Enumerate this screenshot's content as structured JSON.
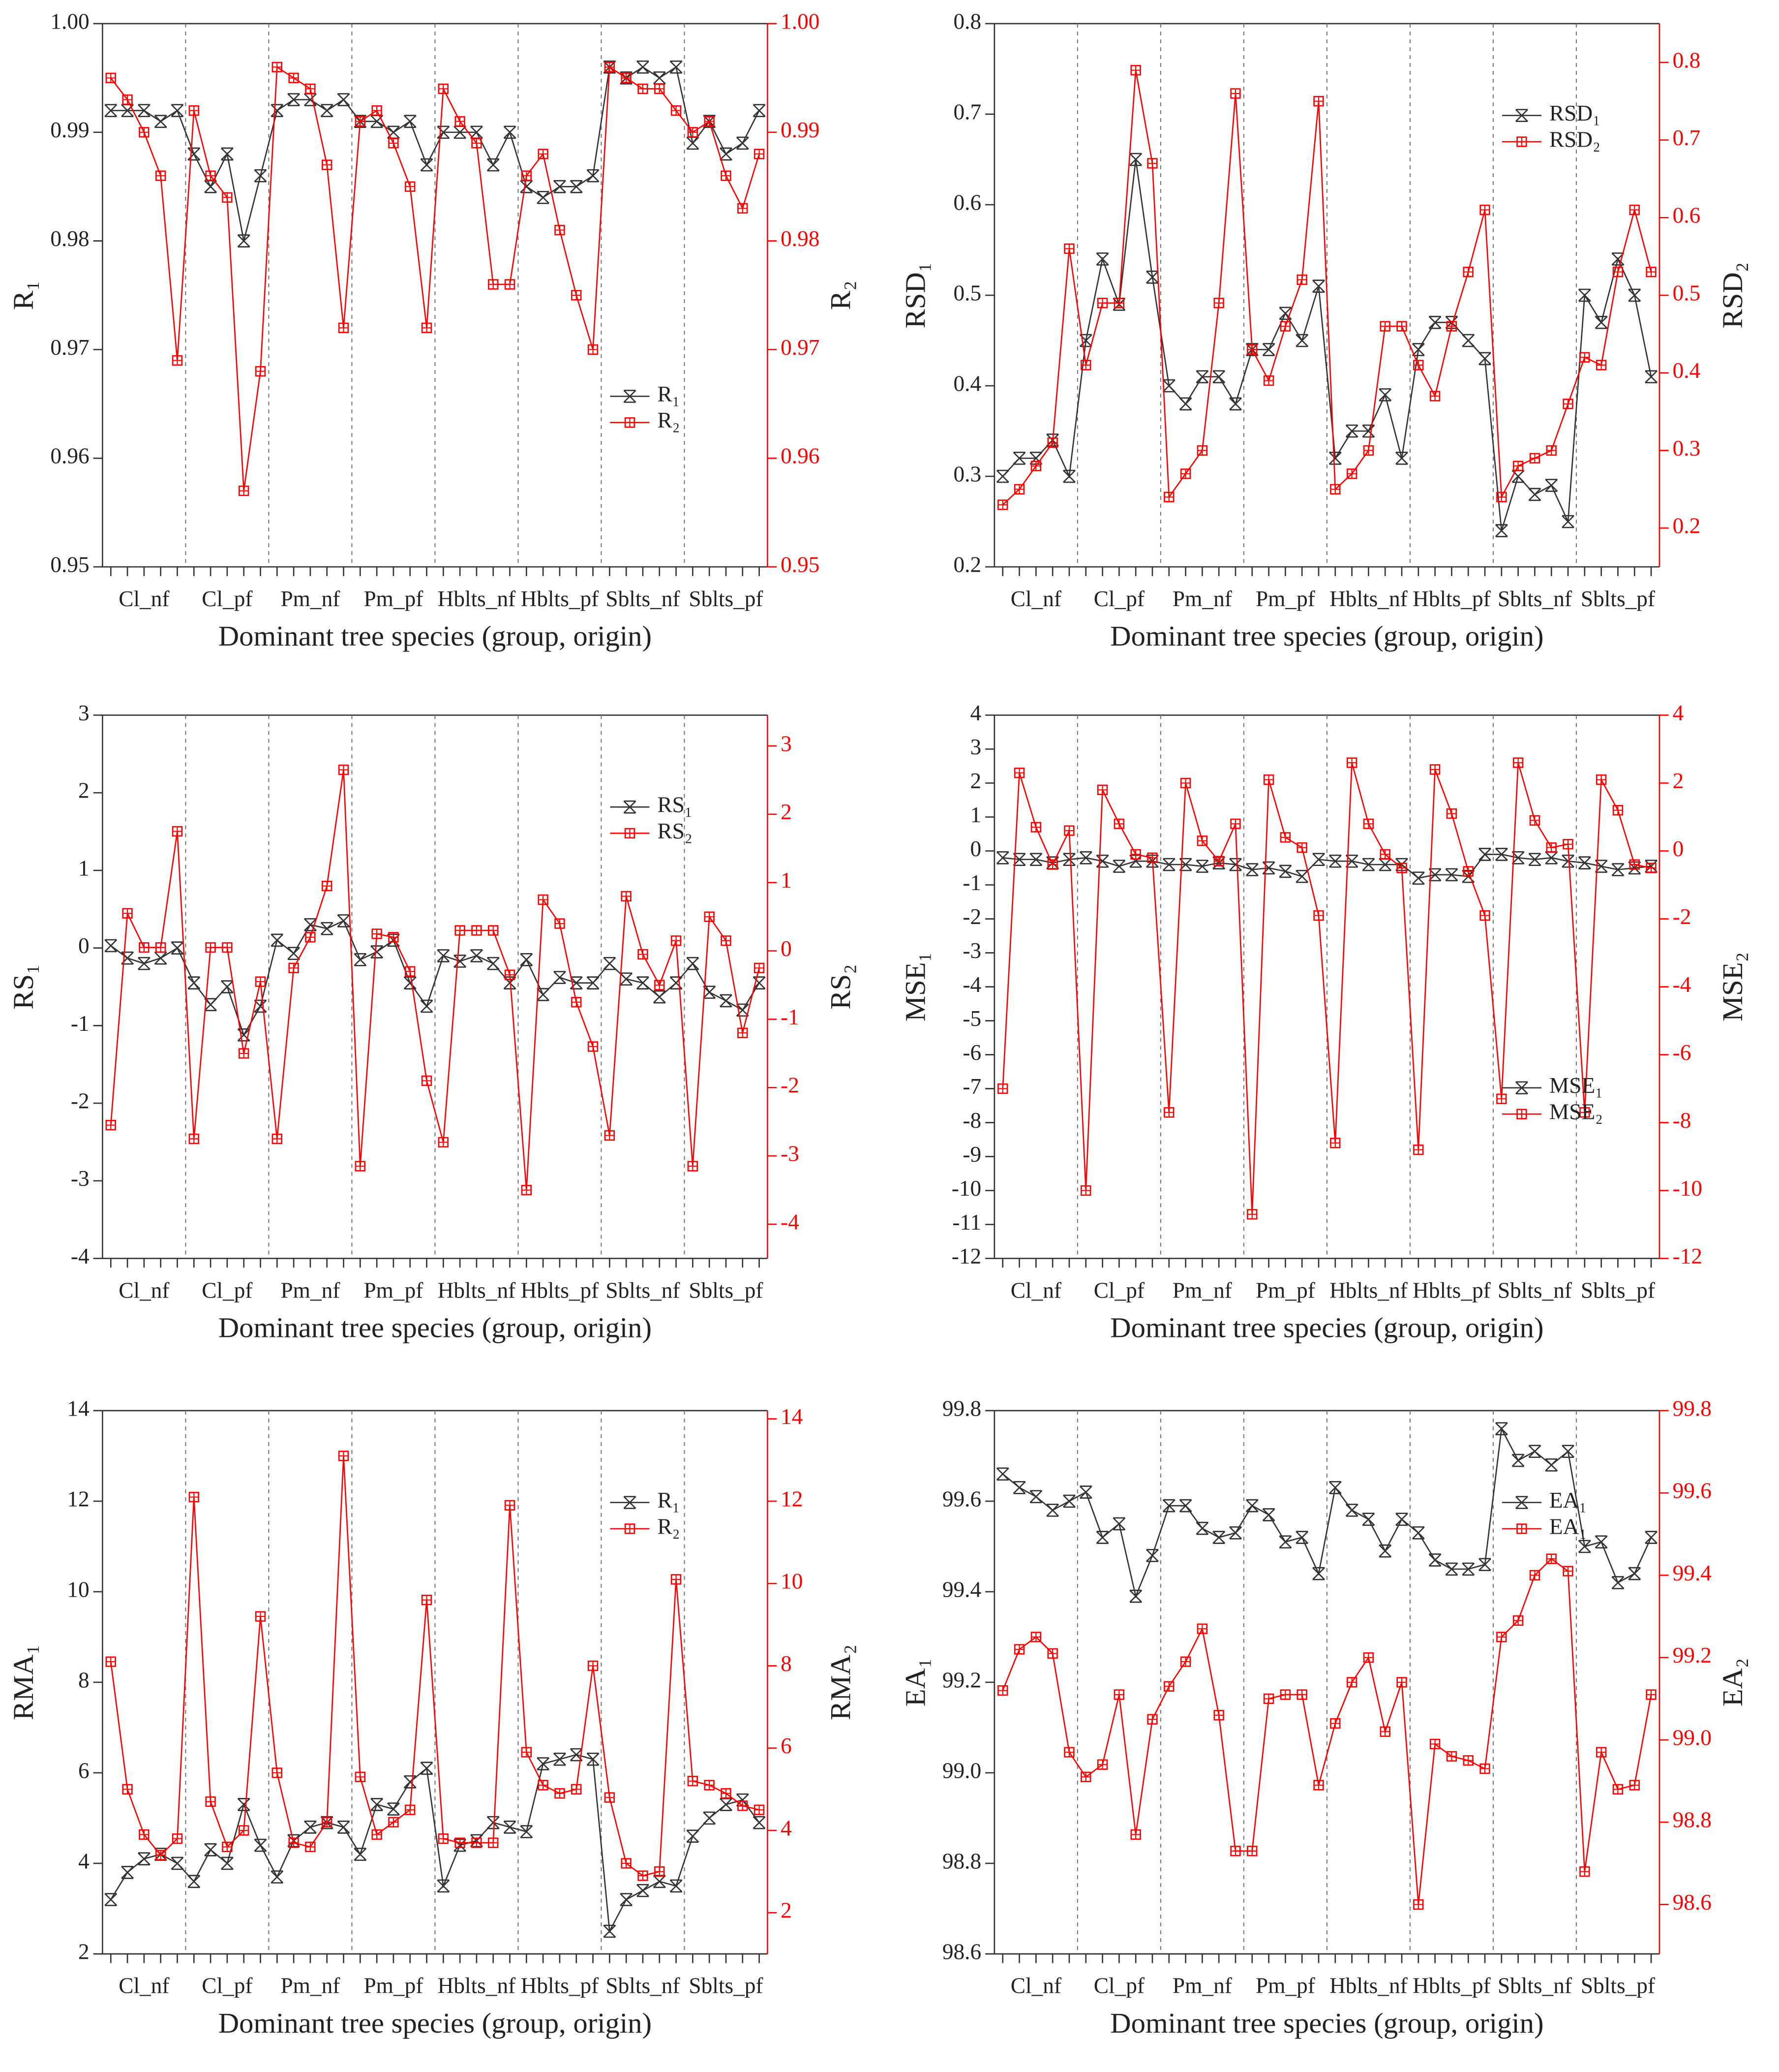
{
  "chart_data": [
    {
      "type": "line",
      "y_label": "R₁",
      "y2_label": "R₂",
      "x_label": "Dominant tree species (group, origin)",
      "legend": "lower right",
      "categories": [
        null,
        null,
        "Cl_nf",
        null,
        null,
        null,
        null,
        "Cl_pf",
        null,
        null,
        null,
        null,
        "Pm_nf",
        null,
        null,
        null,
        null,
        "Pm_pf",
        null,
        null,
        null,
        null,
        "Hblts_nf",
        null,
        null,
        null,
        null,
        "Hblts_pf",
        null,
        null,
        null,
        null,
        "Sblts_nf",
        null,
        null,
        null,
        null,
        "Sblts_pf",
        null,
        null
      ],
      "series": [
        {
          "name": "R₁",
          "color": "#333333",
          "values": [
            0.992,
            0.992,
            0.992,
            0.991,
            0.992,
            0.988,
            0.985,
            0.988,
            0.98,
            0.986,
            0.992,
            0.993,
            0.993,
            0.992,
            0.993,
            0.991,
            0.991,
            0.99,
            0.991,
            0.987,
            0.99,
            0.99,
            0.99,
            0.987,
            0.99,
            0.985,
            0.984,
            0.985,
            0.985,
            0.986,
            0.996,
            0.995,
            0.996,
            0.995,
            0.996,
            0.989,
            0.991,
            0.988,
            0.989,
            0.992
          ]
        },
        {
          "name": "R₂",
          "color": "#ff0000",
          "axis": "y2",
          "values": [
            0.995,
            0.993,
            0.99,
            0.986,
            0.969,
            0.992,
            0.986,
            0.984,
            0.957,
            0.968,
            0.996,
            0.995,
            0.994,
            0.987,
            0.972,
            0.991,
            0.992,
            0.989,
            0.985,
            0.972,
            0.994,
            0.991,
            0.989,
            0.976,
            0.976,
            0.986,
            0.988,
            0.981,
            0.975,
            0.97,
            0.996,
            0.995,
            0.994,
            0.994,
            0.992,
            0.99,
            0.991,
            0.986,
            0.983,
            0.988
          ]
        }
      ],
      "ylim": [
        0.95,
        1.0
      ],
      "yticks": [
        0.95,
        0.96,
        0.97,
        0.98,
        0.99,
        {
          "value": 1.0,
          "label": "1.00"
        }
      ],
      "y2lim": [
        0.95,
        1.0
      ],
      "y2ticks": [
        0.95,
        0.96,
        0.97,
        0.98,
        0.99,
        {
          "value": 1.0,
          "label": "1.00"
        }
      ]
    },
    {
      "type": "line",
      "y_label": "RSD₁",
      "y2_label": "RSD₂",
      "x_label": "Dominant tree species (group, origin)",
      "legend": "upper right",
      "categories": [
        null,
        null,
        "Cl_nf",
        null,
        null,
        null,
        null,
        "Cl_pf",
        null,
        null,
        null,
        null,
        "Pm_nf",
        null,
        null,
        null,
        null,
        "Pm_pf",
        null,
        null,
        null,
        null,
        "Hblts_nf",
        null,
        null,
        null,
        null,
        "Hblts_pf",
        null,
        null,
        null,
        null,
        "Sblts_nf",
        null,
        null,
        null,
        null,
        "Sblts_pf",
        null,
        null
      ],
      "series": [
        {
          "name": "RSD₁",
          "color": "#333333",
          "values": [
            0.3,
            0.32,
            0.32,
            0.34,
            0.3,
            0.45,
            0.54,
            0.49,
            0.65,
            0.52,
            0.4,
            0.38,
            0.41,
            0.41,
            0.38,
            0.44,
            0.44,
            0.48,
            0.45,
            0.51,
            0.32,
            0.35,
            0.35,
            0.39,
            0.32,
            0.44,
            0.47,
            0.47,
            0.45,
            0.43,
            0.24,
            0.3,
            0.28,
            0.29,
            0.25,
            0.5,
            0.47,
            0.54,
            0.5,
            0.41
          ]
        },
        {
          "name": "RSD₂",
          "color": "#ff0000",
          "axis": "y2",
          "values": [
            0.23,
            0.25,
            0.28,
            0.31,
            0.56,
            0.41,
            0.49,
            0.49,
            0.79,
            0.67,
            0.24,
            0.27,
            0.3,
            0.49,
            0.76,
            0.43,
            0.39,
            0.46,
            0.52,
            0.75,
            0.25,
            0.27,
            0.3,
            0.46,
            0.46,
            0.41,
            0.37,
            0.46,
            0.53,
            0.61,
            0.24,
            0.28,
            0.29,
            0.3,
            0.36,
            0.42,
            0.41,
            0.53,
            0.61,
            0.53
          ]
        }
      ],
      "ylim": [
        0.2,
        0.8
      ],
      "yticks": [
        0.2,
        0.3,
        0.4,
        0.5,
        0.6,
        0.7,
        0.8
      ],
      "y2lim": [
        0.15,
        0.85
      ],
      "y2ticks": [
        0.2,
        0.3,
        0.4,
        0.5,
        0.6,
        0.7,
        0.8
      ]
    },
    {
      "type": "line",
      "y_label": "RS₁",
      "y2_label": "RS₂",
      "x_label": "Dominant tree species (group, origin)",
      "legend": "upper right",
      "categories": [
        null,
        null,
        "Cl_nf",
        null,
        null,
        null,
        null,
        "Cl_pf",
        null,
        null,
        null,
        null,
        "Pm_nf",
        null,
        null,
        null,
        null,
        "Pm_pf",
        null,
        null,
        null,
        null,
        "Hblts_nf",
        null,
        null,
        null,
        null,
        "Hblts_pf",
        null,
        null,
        null,
        null,
        "Sblts_nf",
        null,
        null,
        null,
        null,
        "Sblts_pf",
        null,
        null
      ],
      "series": [
        {
          "name": "RS₁",
          "color": "#333333",
          "values": [
            0.03,
            -0.13,
            -0.2,
            -0.13,
            0.0,
            -0.45,
            -0.73,
            -0.5,
            -1.12,
            -0.75,
            0.1,
            -0.07,
            0.3,
            0.25,
            0.35,
            -0.15,
            -0.05,
            0.1,
            -0.45,
            -0.75,
            -0.1,
            -0.17,
            -0.1,
            -0.2,
            -0.45,
            -0.15,
            -0.6,
            -0.38,
            -0.45,
            -0.45,
            -0.2,
            -0.4,
            -0.45,
            -0.63,
            -0.45,
            -0.2,
            -0.57,
            -0.68,
            -0.8,
            -0.45
          ]
        },
        {
          "name": "RS₂",
          "color": "#ff0000",
          "axis": "y2",
          "values": [
            -2.55,
            0.55,
            0.05,
            0.05,
            1.75,
            -2.75,
            0.05,
            0.05,
            -1.5,
            -0.45,
            -2.75,
            -0.25,
            0.2,
            0.95,
            2.65,
            -3.15,
            0.25,
            0.2,
            -0.3,
            -1.9,
            -2.8,
            0.3,
            0.3,
            0.3,
            -0.35,
            -3.5,
            0.75,
            0.4,
            -0.75,
            -1.4,
            -2.7,
            0.8,
            -0.05,
            -0.5,
            0.15,
            -3.15,
            0.5,
            0.15,
            -1.2,
            -0.25
          ]
        }
      ],
      "ylim": [
        -4,
        3
      ],
      "yticks": [
        -4,
        -3,
        -2,
        -1,
        0,
        1,
        2,
        3
      ],
      "y2lim": [
        -4.5,
        3.45
      ],
      "y2ticks": [
        -4,
        -3,
        -2,
        -1,
        0,
        1,
        2,
        3
      ]
    },
    {
      "type": "line",
      "y_label": "MSE₁",
      "y2_label": "MSE₂",
      "x_label": "Dominant tree species (group, origin)",
      "legend": "lower right",
      "categories": [
        null,
        null,
        "Cl_nf",
        null,
        null,
        null,
        null,
        "Cl_pf",
        null,
        null,
        null,
        null,
        "Pm_nf",
        null,
        null,
        null,
        null,
        "Pm_pf",
        null,
        null,
        null,
        null,
        "Hblts_nf",
        null,
        null,
        null,
        null,
        "Hblts_pf",
        null,
        null,
        null,
        null,
        "Sblts_nf",
        null,
        null,
        null,
        null,
        "Sblts_pf",
        null,
        null
      ],
      "series": [
        {
          "name": "MSE₁",
          "color": "#333333",
          "values": [
            -0.2,
            -0.25,
            -0.25,
            -0.35,
            -0.25,
            -0.2,
            -0.3,
            -0.45,
            -0.3,
            -0.3,
            -0.4,
            -0.4,
            -0.45,
            -0.35,
            -0.4,
            -0.55,
            -0.5,
            -0.6,
            -0.75,
            -0.25,
            -0.3,
            -0.3,
            -0.4,
            -0.4,
            -0.4,
            -0.8,
            -0.7,
            -0.7,
            -0.75,
            -0.1,
            -0.1,
            -0.2,
            -0.25,
            -0.2,
            -0.3,
            -0.35,
            -0.45,
            -0.55,
            -0.5,
            -0.45
          ]
        },
        {
          "name": "MSE₂",
          "color": "#ff0000",
          "axis": "y2",
          "values": [
            -7,
            2.3,
            0.7,
            -0.4,
            0.6,
            -10,
            1.8,
            0.8,
            -0.1,
            -0.2,
            -7.7,
            2.0,
            0.3,
            -0.3,
            0.8,
            -10.7,
            2.1,
            0.4,
            0.1,
            -1.9,
            -8.6,
            2.6,
            0.8,
            -0.1,
            -0.5,
            -8.8,
            2.4,
            1.1,
            -0.6,
            -1.9,
            -7.3,
            2.6,
            0.9,
            0.1,
            0.2,
            -7.7,
            2.1,
            1.2,
            -0.4,
            -0.5
          ]
        }
      ],
      "ylim": [
        -12,
        4
      ],
      "yticks": [
        -12,
        -11,
        -10,
        -9,
        -8,
        -7,
        -6,
        -5,
        -4,
        -3,
        -2,
        -1,
        0,
        1,
        2,
        3,
        4
      ],
      "y2lim": [
        -12,
        4
      ],
      "y2ticks": [
        -12,
        -10,
        -8,
        -6,
        -4,
        -2,
        0,
        2,
        4
      ]
    },
    {
      "type": "line",
      "y_label": "RMA₁",
      "y2_label": "RMA₂",
      "x_label": "Dominant tree species (group, origin)",
      "legend": "upper right",
      "categories": [
        null,
        null,
        "Cl_nf",
        null,
        null,
        null,
        null,
        "Cl_pf",
        null,
        null,
        null,
        null,
        "Pm_nf",
        null,
        null,
        null,
        null,
        "Pm_pf",
        null,
        null,
        null,
        null,
        "Hblts_nf",
        null,
        null,
        null,
        null,
        "Hblts_pf",
        null,
        null,
        null,
        null,
        "Sblts_nf",
        null,
        null,
        null,
        null,
        "Sblts_pf",
        null,
        null
      ],
      "series": [
        {
          "name": "R₁",
          "color": "#333333",
          "values": [
            3.2,
            3.8,
            4.1,
            4.2,
            4.0,
            3.6,
            4.3,
            4.0,
            5.3,
            4.4,
            3.7,
            4.5,
            4.8,
            4.9,
            4.8,
            4.2,
            5.3,
            5.2,
            5.8,
            6.1,
            3.5,
            4.4,
            4.5,
            4.9,
            4.8,
            4.7,
            6.2,
            6.3,
            6.4,
            6.3,
            2.5,
            3.2,
            3.4,
            3.6,
            3.5,
            4.6,
            5.0,
            5.3,
            5.4,
            4.9
          ]
        },
        {
          "name": "R₂",
          "color": "#ff0000",
          "axis": "y2",
          "values": [
            8.1,
            5.0,
            3.9,
            3.4,
            3.8,
            12.1,
            4.7,
            3.6,
            4.0,
            9.2,
            5.4,
            3.7,
            3.6,
            4.2,
            13.1,
            5.3,
            3.9,
            4.2,
            4.5,
            9.6,
            3.8,
            3.7,
            3.7,
            3.7,
            11.9,
            5.9,
            5.1,
            4.9,
            5.0,
            8.0,
            4.8,
            3.2,
            2.9,
            3.0,
            10.1,
            5.2,
            5.1,
            4.9,
            4.6,
            4.5
          ]
        }
      ],
      "ylim": [
        2,
        14
      ],
      "yticks": [
        2,
        4,
        6,
        8,
        10,
        12,
        14
      ],
      "y2lim": [
        1,
        14.2
      ],
      "y2ticks": [
        2,
        4,
        6,
        8,
        10,
        12,
        14
      ]
    },
    {
      "type": "line",
      "y_label": "EA₁",
      "y2_label": "EA₂",
      "x_label": "Dominant tree species (group, origin)",
      "legend": "upper right",
      "categories": [
        null,
        null,
        "Cl_nf",
        null,
        null,
        null,
        null,
        "Cl_pf",
        null,
        null,
        null,
        null,
        "Pm_nf",
        null,
        null,
        null,
        null,
        "Pm_pf",
        null,
        null,
        null,
        null,
        "Hblts_nf",
        null,
        null,
        null,
        null,
        "Hblts_pf",
        null,
        null,
        null,
        null,
        "Sblts_nf",
        null,
        null,
        null,
        null,
        "Sblts_pf",
        null,
        null
      ],
      "series": [
        {
          "name": "EA₁",
          "color": "#333333",
          "values": [
            99.66,
            99.63,
            99.61,
            99.58,
            99.6,
            99.62,
            99.52,
            99.55,
            99.39,
            99.48,
            99.59,
            99.59,
            99.54,
            99.52,
            99.53,
            99.59,
            99.57,
            99.51,
            99.52,
            99.44,
            99.63,
            99.58,
            99.56,
            99.49,
            99.56,
            99.53,
            99.47,
            99.45,
            99.45,
            99.46,
            99.76,
            99.69,
            99.71,
            99.68,
            99.71,
            99.5,
            99.51,
            99.42,
            99.44,
            99.52
          ]
        },
        {
          "name": "EA₁",
          "color": "#ff0000",
          "axis": "y2",
          "values": [
            99.12,
            99.22,
            99.25,
            99.21,
            98.97,
            98.91,
            98.94,
            99.11,
            98.77,
            99.05,
            99.13,
            99.19,
            99.27,
            99.06,
            98.73,
            98.73,
            99.1,
            99.11,
            99.11,
            98.89,
            99.04,
            99.14,
            99.2,
            99.02,
            99.14,
            98.6,
            98.99,
            98.96,
            98.95,
            98.93,
            99.25,
            99.29,
            99.4,
            99.44,
            99.41,
            98.68,
            98.97,
            98.88,
            98.89,
            99.11
          ]
        }
      ],
      "ylim": [
        98.6,
        99.8
      ],
      "yticks": [
        98.6,
        98.8,
        {
          "value": 99.0,
          "label": "99.0"
        },
        99.2,
        99.4,
        99.6,
        99.8
      ],
      "y2lim": [
        98.48,
        99.8
      ],
      "y2ticks": [
        98.6,
        98.8,
        {
          "value": 99.0,
          "label": "99.0"
        },
        99.2,
        99.4,
        99.6,
        99.8
      ]
    }
  ]
}
